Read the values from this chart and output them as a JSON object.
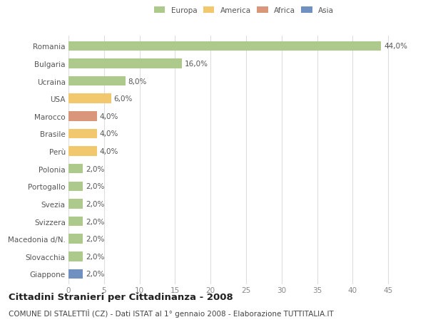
{
  "categories": [
    "Romania",
    "Bulgaria",
    "Ucraina",
    "USA",
    "Marocco",
    "Brasile",
    "Perù",
    "Polonia",
    "Portogallo",
    "Svezia",
    "Svizzera",
    "Macedonia d/N.",
    "Slovacchia",
    "Giappone"
  ],
  "values": [
    44.0,
    16.0,
    8.0,
    6.0,
    4.0,
    4.0,
    4.0,
    2.0,
    2.0,
    2.0,
    2.0,
    2.0,
    2.0,
    2.0
  ],
  "colors": [
    "#adc98b",
    "#adc98b",
    "#adc98b",
    "#f2c86e",
    "#d9967a",
    "#f2c86e",
    "#f2c86e",
    "#adc98b",
    "#adc98b",
    "#adc98b",
    "#adc98b",
    "#adc98b",
    "#adc98b",
    "#7090bf"
  ],
  "legend": [
    {
      "label": "Europa",
      "color": "#adc98b"
    },
    {
      "label": "America",
      "color": "#f2c86e"
    },
    {
      "label": "Africa",
      "color": "#d9967a"
    },
    {
      "label": "Asia",
      "color": "#7090bf"
    }
  ],
  "xlim": [
    0,
    47
  ],
  "xticks": [
    0,
    5,
    10,
    15,
    20,
    25,
    30,
    35,
    40,
    45
  ],
  "title": "Cittadini Stranieri per Cittadinanza - 2008",
  "subtitle": "COMUNE DI STALETTIÌ (CZ) - Dati ISTAT al 1° gennaio 2008 - Elaborazione TUTTITALIA.IT",
  "background_color": "#ffffff",
  "bar_height": 0.55,
  "label_fontsize": 7.5,
  "tick_fontsize": 7.5,
  "title_fontsize": 9.5,
  "subtitle_fontsize": 7.5
}
